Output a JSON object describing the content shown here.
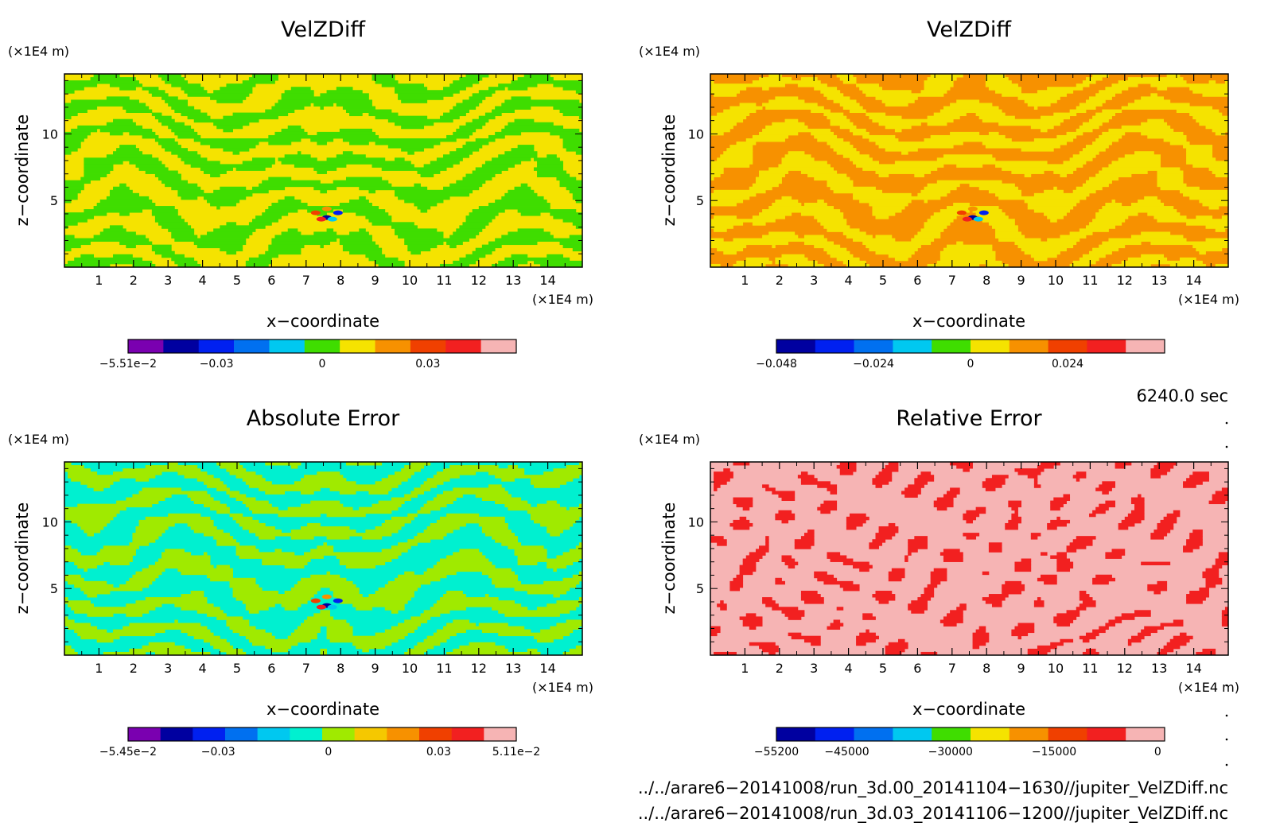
{
  "chart_data": [
    {
      "type": "heatmap",
      "title": "VelZDiff",
      "xlabel": "x−coordinate",
      "ylabel": "z−coordinate",
      "x_unit": "(×1E4 m)",
      "y_unit": "(×1E4 m)",
      "xlim": [
        0,
        15
      ],
      "ylim": [
        0,
        14.5
      ],
      "xticks": [
        "1",
        "2",
        "3",
        "4",
        "5",
        "6",
        "7",
        "8",
        "9",
        "10",
        "11",
        "12",
        "13",
        "14"
      ],
      "yticks": [
        "5",
        "10"
      ],
      "palette": [
        "#f5e300",
        "#3fdd00"
      ],
      "colorbar": {
        "colors": [
          "#7a00b0",
          "#0000a0",
          "#0020f0",
          "#0070f0",
          "#00c8f0",
          "#3fdd00",
          "#f5e300",
          "#f79100",
          "#f04000",
          "#f22020",
          "#f6b4b4"
        ],
        "range": [
          -0.0551,
          0.0551
        ],
        "labels": [
          "−5.51e−2",
          "−0.03",
          "0",
          "0.03"
        ],
        "label_values": [
          -0.0551,
          -0.03,
          0,
          0.03
        ]
      }
    },
    {
      "type": "heatmap",
      "title": "VelZDiff",
      "xlabel": "x−coordinate",
      "ylabel": "z−coordinate",
      "x_unit": "(×1E4 m)",
      "y_unit": "(×1E4 m)",
      "xlim": [
        0,
        15
      ],
      "ylim": [
        0,
        14.5
      ],
      "xticks": [
        "1",
        "2",
        "3",
        "4",
        "5",
        "6",
        "7",
        "8",
        "9",
        "10",
        "11",
        "12",
        "13",
        "14"
      ],
      "yticks": [
        "5",
        "10"
      ],
      "palette": [
        "#f79100",
        "#f5e300"
      ],
      "colorbar": {
        "colors": [
          "#0000a0",
          "#0020f0",
          "#0070f0",
          "#00c8f0",
          "#3fdd00",
          "#f5e300",
          "#f79100",
          "#f04000",
          "#f22020",
          "#f6b4b4"
        ],
        "range": [
          -0.048,
          0.048
        ],
        "labels": [
          "−0.048",
          "−0.024",
          "0",
          "0.024"
        ],
        "label_values": [
          -0.048,
          -0.024,
          0,
          0.024
        ]
      }
    },
    {
      "type": "heatmap",
      "title": "Absolute Error",
      "xlabel": "x−coordinate",
      "ylabel": "z−coordinate",
      "x_unit": "(×1E4 m)",
      "y_unit": "(×1E4 m)",
      "xlim": [
        0,
        15
      ],
      "ylim": [
        0,
        14.5
      ],
      "xticks": [
        "1",
        "2",
        "3",
        "4",
        "5",
        "6",
        "7",
        "8",
        "9",
        "10",
        "11",
        "12",
        "13",
        "14"
      ],
      "yticks": [
        "5",
        "10"
      ],
      "palette": [
        "#00f0d0",
        "#a0ea00"
      ],
      "colorbar": {
        "colors": [
          "#7a00b0",
          "#0000a0",
          "#0020f0",
          "#0070f0",
          "#00c8f0",
          "#00f0d0",
          "#a0ea00",
          "#f5c800",
          "#f79100",
          "#f04000",
          "#f22020",
          "#f6b4b4"
        ],
        "range": [
          -0.0545,
          0.0511
        ],
        "labels": [
          "−5.45e−2",
          "−0.03",
          "0",
          "0.03",
          "5.11e−2"
        ],
        "label_values": [
          -0.0545,
          -0.03,
          0,
          0.03,
          0.0511
        ]
      }
    },
    {
      "type": "heatmap",
      "title": "Relative Error",
      "xlabel": "x−coordinate",
      "ylabel": "z−coordinate",
      "x_unit": "(×1E4 m)",
      "y_unit": "(×1E4 m)",
      "xlim": [
        0,
        15
      ],
      "ylim": [
        0,
        14.5
      ],
      "xticks": [
        "1",
        "2",
        "3",
        "4",
        "5",
        "6",
        "7",
        "8",
        "9",
        "10",
        "11",
        "12",
        "13",
        "14"
      ],
      "yticks": [
        "5",
        "10"
      ],
      "palette": [
        "#f6b4b4",
        "#f22020"
      ],
      "colorbar": {
        "colors": [
          "#0000a0",
          "#0020f0",
          "#0070f0",
          "#00c8f0",
          "#3fdd00",
          "#f5e300",
          "#f79100",
          "#f04000",
          "#f22020",
          "#f6b4b4"
        ],
        "range": [
          -55200,
          1000
        ],
        "labels": [
          "−55200",
          "−45000",
          "−30000",
          "−15000",
          "0"
        ],
        "label_values": [
          -55200,
          -45000,
          -30000,
          -15000,
          0
        ]
      }
    }
  ],
  "footer": {
    "time_label": "6240.0 sec",
    "file_1": "../../arare6−20141008/run_3d.00_20141104−1630//jupiter_VelZDiff.nc",
    "file_2": "../../arare6−20141008/run_3d.03_20141106−1200//jupiter_VelZDiff.nc"
  }
}
